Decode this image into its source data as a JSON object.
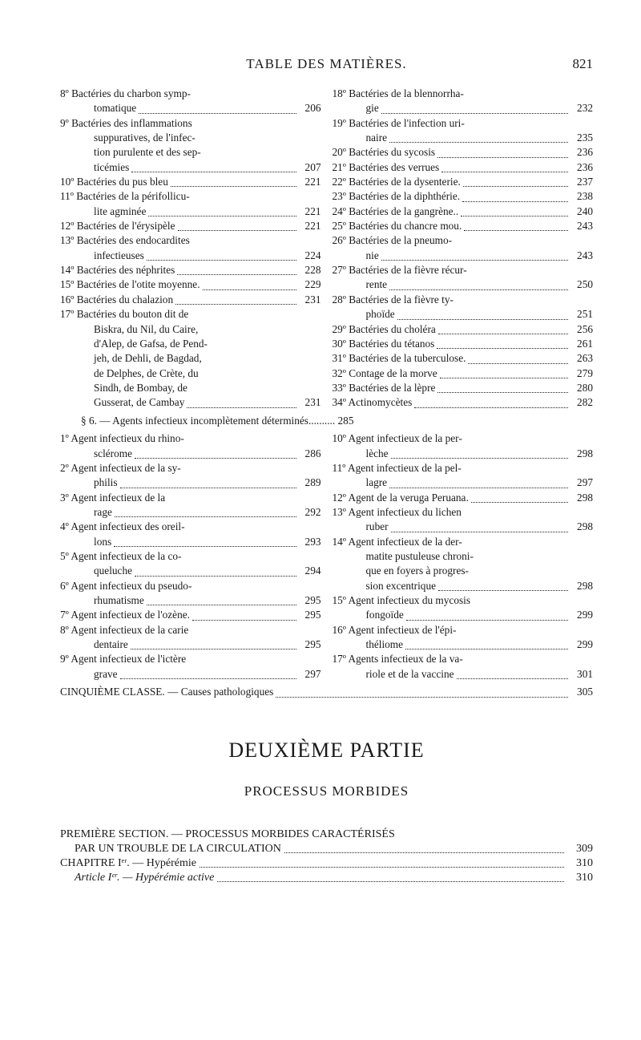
{
  "header": {
    "title": "TABLE DES MATIÈRES.",
    "page_number": "821"
  },
  "left_column": [
    {
      "lines": [
        "8º Bactéries du charbon symp-",
        "tomatique"
      ],
      "page": "206",
      "cont": true
    },
    {
      "lines": [
        "9º Bactéries des inflammations",
        "suppuratives, de l'infec-",
        "tion purulente et des sep-",
        "ticémies"
      ],
      "page": "207",
      "cont": true
    },
    {
      "lines": [
        "10º Bactéries du pus bleu"
      ],
      "page": "221"
    },
    {
      "lines": [
        "11º Bactéries de la périfollicu-",
        "lite agminée"
      ],
      "page": "221",
      "cont": true
    },
    {
      "lines": [
        "12º Bactéries de l'érysipèle"
      ],
      "page": "221"
    },
    {
      "lines": [
        "13º Bactéries des endocardites",
        "infectieuses"
      ],
      "page": "224",
      "cont": true
    },
    {
      "lines": [
        "14º Bactéries des néphrites"
      ],
      "page": "228"
    },
    {
      "lines": [
        "15º Bactéries de l'otite moyenne."
      ],
      "page": "229"
    },
    {
      "lines": [
        "16º Bactéries du chalazion"
      ],
      "page": "231"
    },
    {
      "lines": [
        "17º Bactéries du bouton dit de",
        "Biskra, du Nil, du Caire,",
        "d'Alep, de Gafsa, de Pend-",
        "jeh, de Dehli, de Bagdad,",
        "de Delphes, de Crète, du",
        "Sindh, de Bombay, de",
        "Gusserat, de Cambay"
      ],
      "page": "231",
      "cont": true
    }
  ],
  "cross_line": "§ 6. — Agents infectieux incomplètement déterminés..........  285",
  "left_column2": [
    {
      "lines": [
        "1º Agent infectieux du rhino-",
        "sclérome"
      ],
      "page": "286",
      "cont": true
    },
    {
      "lines": [
        "2º Agent infectieux de la sy-",
        "philis"
      ],
      "page": "289",
      "cont": true
    },
    {
      "lines": [
        "3º Agent infectieux de la",
        "rage"
      ],
      "page": "292",
      "cont": true
    },
    {
      "lines": [
        "4º Agent infectieux des oreil-",
        "lons"
      ],
      "page": "293",
      "cont": true
    },
    {
      "lines": [
        "5º Agent infectieux de la co-",
        "queluche"
      ],
      "page": "294",
      "cont": true
    },
    {
      "lines": [
        "6º Agent infectieux du pseudo-",
        "rhumatisme"
      ],
      "page": "295",
      "cont": true
    },
    {
      "lines": [
        "7º Agent infectieux de l'ozène."
      ],
      "page": "295"
    },
    {
      "lines": [
        "8º Agent infectieux de la carie",
        "dentaire"
      ],
      "page": "295",
      "cont": true
    },
    {
      "lines": [
        "9º Agent infectieux de l'ictère",
        "grave"
      ],
      "page": "297",
      "cont": true
    }
  ],
  "right_column": [
    {
      "lines": [
        "18º Bactéries de la blennorrha-",
        "gie"
      ],
      "page": "232",
      "cont": true
    },
    {
      "lines": [
        "19º Bactéries de l'infection uri-",
        "naire"
      ],
      "page": "235",
      "cont": true
    },
    {
      "lines": [
        "20º Bactéries du sycosis"
      ],
      "page": "236"
    },
    {
      "lines": [
        "21º Bactéries des verrues"
      ],
      "page": "236"
    },
    {
      "lines": [
        "22º Bactéries de la dysenterie."
      ],
      "page": "237"
    },
    {
      "lines": [
        "23º Bactéries de la diphthérie."
      ],
      "page": "238"
    },
    {
      "lines": [
        "24º Bactéries de la gangrène.."
      ],
      "page": "240"
    },
    {
      "lines": [
        "25º Bactéries du chancre mou."
      ],
      "page": "243"
    },
    {
      "lines": [
        "26º Bactéries de la pneumo-",
        "nie"
      ],
      "page": "243",
      "cont": true
    },
    {
      "lines": [
        "27º Bactéries de la fièvre récur-",
        "rente"
      ],
      "page": "250",
      "cont": true
    },
    {
      "lines": [
        "28º Bactéries de la fièvre ty-",
        "phoïde"
      ],
      "page": "251",
      "cont": true
    },
    {
      "lines": [
        "29º Bactéries du choléra"
      ],
      "page": "256"
    },
    {
      "lines": [
        "30º Bactéries du tétanos"
      ],
      "page": "261"
    },
    {
      "lines": [
        "31º Bactéries de la tuberculose."
      ],
      "page": "263"
    },
    {
      "lines": [
        "32º Contage de la morve"
      ],
      "page": "279"
    },
    {
      "lines": [
        "33º Bactéries de la lèpre"
      ],
      "page": "280"
    },
    {
      "lines": [
        "34º Actinomycètes"
      ],
      "page": "282"
    }
  ],
  "right_column2": [
    {
      "lines": [
        "10º Agent infectieux de la per-",
        "lèche"
      ],
      "page": "298",
      "cont": true
    },
    {
      "lines": [
        "11º Agent infectieux de la pel-",
        "lagre"
      ],
      "page": "297",
      "cont": true
    },
    {
      "lines": [
        "12º Agent de la veruga Peruana."
      ],
      "page": "298"
    },
    {
      "lines": [
        "13º Agent infectieux du lichen",
        "ruber"
      ],
      "page": "298",
      "cont": true
    },
    {
      "lines": [
        "14º Agent infectieux de la der-",
        "matite pustuleuse chroni-",
        "que en foyers à progres-",
        "sion excentrique"
      ],
      "page": "298",
      "cont": true
    },
    {
      "lines": [
        "15º Agent infectieux du mycosis",
        "fongoïde"
      ],
      "page": "299",
      "cont": true
    },
    {
      "lines": [
        "16º Agent infectieux de l'épi-",
        "théliome"
      ],
      "page": "299",
      "cont": true
    },
    {
      "lines": [
        "17º Agents infectieux de la va-",
        "riole et de la vaccine"
      ],
      "page": "301",
      "cont": true
    }
  ],
  "final_line": {
    "label": "CINQUIÈME CLASSE. — Causes pathologiques",
    "page": "305"
  },
  "part": {
    "title": "DEUXIÈME PARTIE",
    "subtitle": "PROCESSUS MORBIDES"
  },
  "section_rows": [
    {
      "label": "PREMIÈRE SECTION. — PROCESSUS MORBIDES CARACTÉRISÉS",
      "nopage": true,
      "indent": 0
    },
    {
      "label": "PAR UN TROUBLE DE LA CIRCULATION",
      "page": "309",
      "indent": 1
    },
    {
      "label": "CHAPITRE Iᵉʳ. — Hypérémie",
      "page": "310",
      "indent": 0,
      "sc": true
    },
    {
      "label": "Article Iᵉʳ. — Hypérémie active",
      "page": "310",
      "indent": 1,
      "italic": true
    }
  ]
}
